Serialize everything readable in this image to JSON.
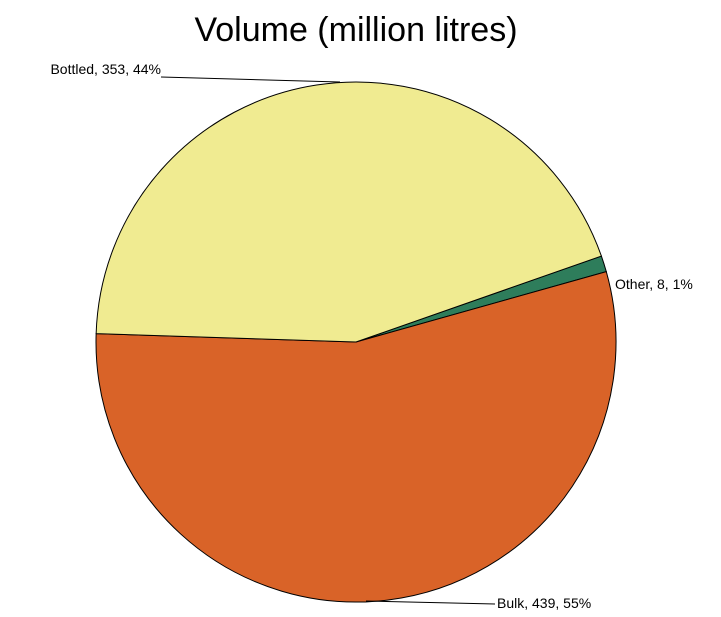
{
  "chart_data": {
    "type": "pie",
    "title": "Volume (million litres)",
    "slices": [
      {
        "label": "Other",
        "value": 8,
        "percent": "1%",
        "color": "#2E7D5B",
        "label_text": "Other, 8, 1%"
      },
      {
        "label": "Bulk",
        "value": 439,
        "percent": "55%",
        "color": "#D96328",
        "label_text": "Bulk, 439, 55%"
      },
      {
        "label": "Bottled",
        "value": 353,
        "percent": "44%",
        "color": "#F0EB91",
        "label_text": "Bottled, 353, 44%"
      }
    ],
    "legend": "none",
    "data_labels": "outside with leader lines"
  }
}
